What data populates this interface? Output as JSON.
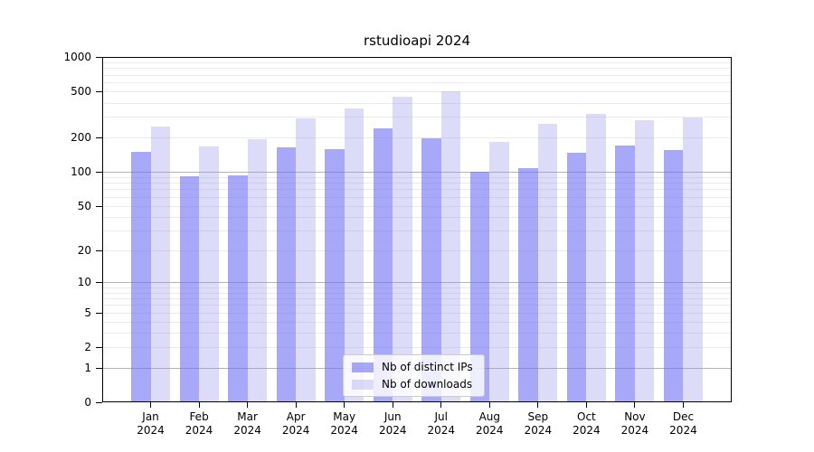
{
  "title": "rstudioapi 2024",
  "colors": {
    "ips": "rgba(110,110,243,0.60)",
    "downloads": "rgba(150,150,235,0.33)",
    "grid_major": "#b3b3b3",
    "grid_minor": "#ebebeb",
    "axis": "#000000"
  },
  "legend": {
    "position": "lower center",
    "items": [
      {
        "label": "Nb of distinct IPs",
        "series": "ips"
      },
      {
        "label": "Nb of downloads",
        "series": "downloads"
      }
    ]
  },
  "chart_data": {
    "type": "bar",
    "title": "rstudioapi 2024",
    "categories": [
      "Jan",
      "Feb",
      "Mar",
      "Apr",
      "May",
      "Jun",
      "Jul",
      "Aug",
      "Sep",
      "Oct",
      "Nov",
      "Dec"
    ],
    "year_label": "2024",
    "series": [
      {
        "name": "Nb of distinct IPs",
        "values": [
          150,
          91,
          93,
          163,
          157,
          239,
          195,
          100,
          107,
          146,
          170,
          155
        ]
      },
      {
        "name": "Nb of downloads",
        "values": [
          247,
          166,
          191,
          292,
          359,
          452,
          502,
          181,
          262,
          318,
          282,
          296
        ]
      }
    ],
    "xlabel": "",
    "ylabel": "",
    "yscale": "log10(value+1)",
    "ylim": [
      0,
      1000
    ],
    "yticks": [
      0,
      1,
      2,
      5,
      10,
      20,
      50,
      100,
      200,
      500,
      1000
    ],
    "grid": true,
    "grid_major_at": [
      1,
      10,
      100
    ],
    "legend_position": "lower center"
  }
}
